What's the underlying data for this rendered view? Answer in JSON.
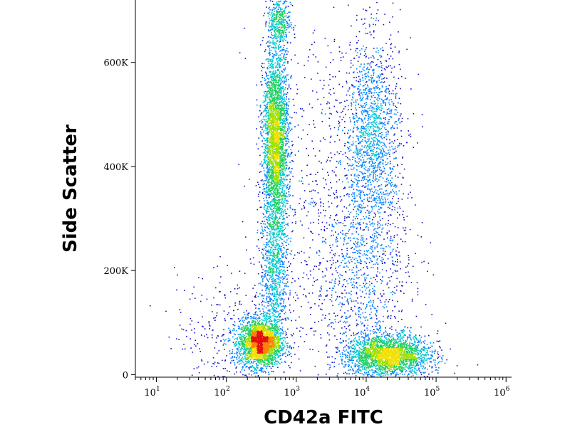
{
  "chart_data": {
    "type": "scatter",
    "style": "density-colored flow cytometry dot plot",
    "title": "",
    "xlabel": "CD42a FITC",
    "ylabel": "Side Scatter",
    "x_scale": "log",
    "xlim": [
      5,
      1200000
    ],
    "ylim": [
      -5000,
      720000
    ],
    "x_ticks": [
      {
        "value": 10,
        "base": "10",
        "exp": "1"
      },
      {
        "value": 100,
        "base": "10",
        "exp": "2"
      },
      {
        "value": 1000,
        "base": "10",
        "exp": "3"
      },
      {
        "value": 10000,
        "base": "10",
        "exp": "4"
      },
      {
        "value": 100000,
        "base": "10",
        "exp": "5"
      },
      {
        "value": 1000000,
        "base": "10",
        "exp": "6"
      }
    ],
    "y_ticks": [
      {
        "value": 0,
        "label": "0"
      },
      {
        "value": 200000,
        "label": "200K"
      },
      {
        "value": 400000,
        "label": "400K"
      },
      {
        "value": 600000,
        "label": "600K"
      }
    ],
    "density_colormap": [
      "#1010c8",
      "#0080ff",
      "#00c8d0",
      "#20d060",
      "#a0e000",
      "#f0e000",
      "#ff8000",
      "#e01010"
    ],
    "populations": [
      {
        "cx": 300,
        "cy": 62000,
        "sx_log": 0.15,
        "sy": 22000,
        "n": 2600
      },
      {
        "cx": 500,
        "cy": 450000,
        "sx_log": 0.09,
        "sy": 90000,
        "n": 3200
      },
      {
        "cx": 480,
        "cy": 200000,
        "sx_log": 0.1,
        "sy": 70000,
        "n": 900
      },
      {
        "cx": 560,
        "cy": 680000,
        "sx_log": 0.08,
        "sy": 30000,
        "n": 400
      },
      {
        "cx": 20000,
        "cy": 38000,
        "sx_log": 0.3,
        "sy": 20000,
        "n": 2600
      },
      {
        "cx": 12000,
        "cy": 470000,
        "sx_log": 0.2,
        "sy": 90000,
        "n": 1400
      },
      {
        "cx": 9000,
        "cy": 220000,
        "sx_log": 0.35,
        "sy": 100000,
        "n": 900
      },
      {
        "cx": 3000,
        "cy": 300000,
        "sx_log": 0.5,
        "sy": 200000,
        "n": 700
      },
      {
        "cx": 120,
        "cy": 80000,
        "sx_log": 0.4,
        "sy": 60000,
        "n": 350
      }
    ]
  }
}
